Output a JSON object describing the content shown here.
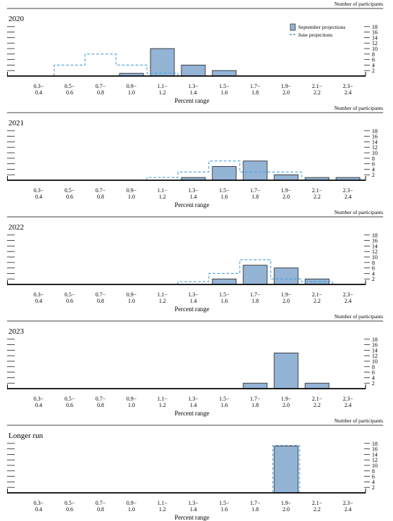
{
  "chart_data": {
    "type": "bar",
    "header_label": "Number of participants",
    "xlabel": "Percent range",
    "categories": [
      {
        "top": "0.3−",
        "bottom": "0.4"
      },
      {
        "top": "0.5−",
        "bottom": "0.6"
      },
      {
        "top": "0.7−",
        "bottom": "0.8"
      },
      {
        "top": "0.9−",
        "bottom": "1.0"
      },
      {
        "top": "1.1−",
        "bottom": "1.2"
      },
      {
        "top": "1.3−",
        "bottom": "1.4"
      },
      {
        "top": "1.5−",
        "bottom": "1.6"
      },
      {
        "top": "1.7−",
        "bottom": "1.8"
      },
      {
        "top": "1.9−",
        "bottom": "2.0"
      },
      {
        "top": "2.1−",
        "bottom": "2.2"
      },
      {
        "top": "2.3−",
        "bottom": "2.4"
      }
    ],
    "ylim": [
      0,
      18
    ],
    "yticks": [
      "2",
      "4",
      "6",
      "8",
      "10",
      "12",
      "14",
      "16",
      "18"
    ],
    "legend": {
      "placement": "top-right",
      "entries": [
        "September projections",
        "June projections"
      ]
    },
    "colors": {
      "september": "#94b4d6",
      "june": "#4a9fd8",
      "bar_edge": "#1a1a1a"
    },
    "panels": [
      {
        "title": "2020",
        "september": [
          0,
          0,
          0,
          1,
          10,
          4,
          2,
          0,
          0,
          0,
          0
        ],
        "june": [
          0,
          4,
          8,
          4,
          1,
          0,
          0,
          0,
          0,
          0,
          0
        ]
      },
      {
        "title": "2021",
        "september": [
          0,
          0,
          0,
          0,
          0,
          1,
          5,
          7,
          2,
          1,
          1
        ],
        "june": [
          0,
          0,
          0,
          0,
          1,
          3,
          7,
          3,
          3,
          0,
          0
        ]
      },
      {
        "title": "2022",
        "september": [
          0,
          0,
          0,
          0,
          0,
          0,
          2,
          7,
          6,
          2,
          0
        ],
        "june": [
          0,
          0,
          0,
          0,
          0,
          1,
          4,
          9,
          2,
          1,
          0
        ]
      },
      {
        "title": "2023",
        "september": [
          0,
          0,
          0,
          0,
          0,
          0,
          0,
          2,
          13,
          2,
          0
        ],
        "june": []
      },
      {
        "title": "Longer run",
        "september": [
          0,
          0,
          0,
          0,
          0,
          0,
          0,
          0,
          17,
          0,
          0
        ],
        "june": [
          0,
          0,
          0,
          0,
          0,
          0,
          0,
          0,
          17,
          0,
          0
        ]
      }
    ]
  }
}
